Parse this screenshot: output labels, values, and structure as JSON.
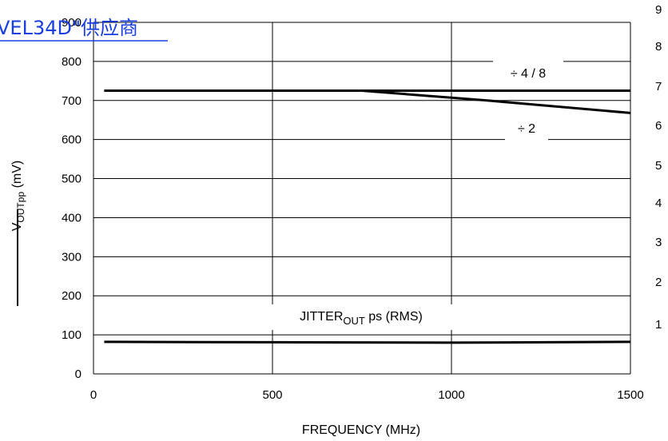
{
  "watermark": "VEL34D\"供应商",
  "chart_data": {
    "type": "line",
    "xlabel": "FREQUENCY (MHz)",
    "ylabel_main": "V",
    "ylabel_sub": "OUTpp",
    "ylabel_unit": " (mV)",
    "xlim": [
      0,
      1500
    ],
    "ylim": [
      0,
      900
    ],
    "x_ticks": [
      "0",
      "500",
      "1000",
      "1500"
    ],
    "y_ticks": [
      "0",
      "100",
      "200",
      "300",
      "400",
      "500",
      "600",
      "700",
      "800",
      "900"
    ],
    "y2_ticks": [
      "1",
      "2",
      "3",
      "4",
      "5",
      "6",
      "7",
      "8",
      "9"
    ],
    "grid": true,
    "annotations": {
      "div48": "÷ 4 / 8",
      "div2": "÷ 2",
      "jitter_main": "JITTER",
      "jitter_sub": "OUT",
      "jitter_unit": " ps (RMS)"
    },
    "series": [
      {
        "x": [
          30,
          750,
          1100,
          1500
        ],
        "values": [
          725,
          725,
          725,
          725
        ]
      },
      {
        "x": [
          30,
          750,
          1100,
          1500
        ],
        "values": [
          725,
          725,
          700,
          668
        ]
      },
      {
        "x": [
          30,
          500,
          1000,
          1500
        ],
        "values": [
          82,
          81,
          80,
          82
        ]
      }
    ]
  }
}
